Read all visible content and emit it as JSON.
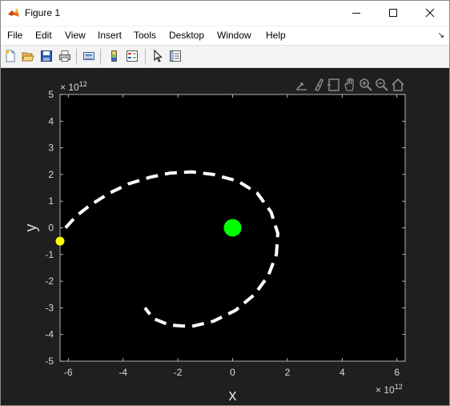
{
  "window": {
    "title": "Figure 1",
    "controls": {
      "minimize": "minimize-icon",
      "maximize": "maximize-icon",
      "close": "close-icon"
    }
  },
  "menu": {
    "items": [
      "File",
      "Edit",
      "View",
      "Insert",
      "Tools",
      "Desktop",
      "Window",
      "Help"
    ]
  },
  "toolbar": {
    "buttons": [
      "new-figure-icon",
      "open-file-icon",
      "save-icon",
      "print-icon",
      "link-plot-icon",
      "insert-colorbar-icon",
      "insert-legend-icon",
      "edit-plot-icon",
      "property-inspector-icon"
    ]
  },
  "axes_toolbar": {
    "buttons": [
      "export-icon",
      "brush-icon",
      "data-tips-icon",
      "pan-icon",
      "zoom-in-icon",
      "zoom-out-icon",
      "home-icon"
    ]
  },
  "colors": {
    "figure_background": "#1f1f1f",
    "axes_background": "#000000",
    "orbit": "#ffffff",
    "central_body": "#00ff00",
    "orbiting_body": "#ffff00",
    "axis_text": "#d9d9d9"
  },
  "chart_data": {
    "type": "scatter",
    "xlabel": "x",
    "ylabel": "y",
    "xlim": [
      -6.3,
      6.3
    ],
    "ylim": [
      -5,
      5
    ],
    "x_exponent_label": "× 10",
    "x_exponent": "12",
    "y_exponent_label": "× 10",
    "y_exponent": "12",
    "xticks": [
      -6,
      -4,
      -2,
      0,
      2,
      4,
      6
    ],
    "yticks": [
      -5,
      -4,
      -3,
      -2,
      -1,
      0,
      1,
      2,
      3,
      4,
      5
    ],
    "grid": false,
    "series": [
      {
        "style": "dashed-line",
        "color": "#ffffff",
        "x": [
          -6.1,
          -5.7,
          -5.2,
          -4.5,
          -3.8,
          -3.0,
          -2.3,
          -1.5,
          -0.7,
          0.2,
          0.9,
          1.4,
          1.65,
          1.6,
          1.3,
          0.8,
          0.1,
          -0.7,
          -1.5,
          -2.3,
          -2.9,
          -3.2
        ],
        "y": [
          0.0,
          0.45,
          0.85,
          1.3,
          1.65,
          1.9,
          2.05,
          2.1,
          2.0,
          1.75,
          1.3,
          0.6,
          -0.2,
          -1.0,
          -1.8,
          -2.5,
          -3.1,
          -3.5,
          -3.7,
          -3.65,
          -3.4,
          -3.0
        ]
      },
      {
        "style": "marker",
        "color": "#00ff00",
        "x": [
          0.0
        ],
        "y": [
          0.0
        ]
      },
      {
        "style": "marker",
        "color": "#ffff00",
        "x": [
          -6.3
        ],
        "y": [
          -0.5
        ]
      }
    ]
  }
}
